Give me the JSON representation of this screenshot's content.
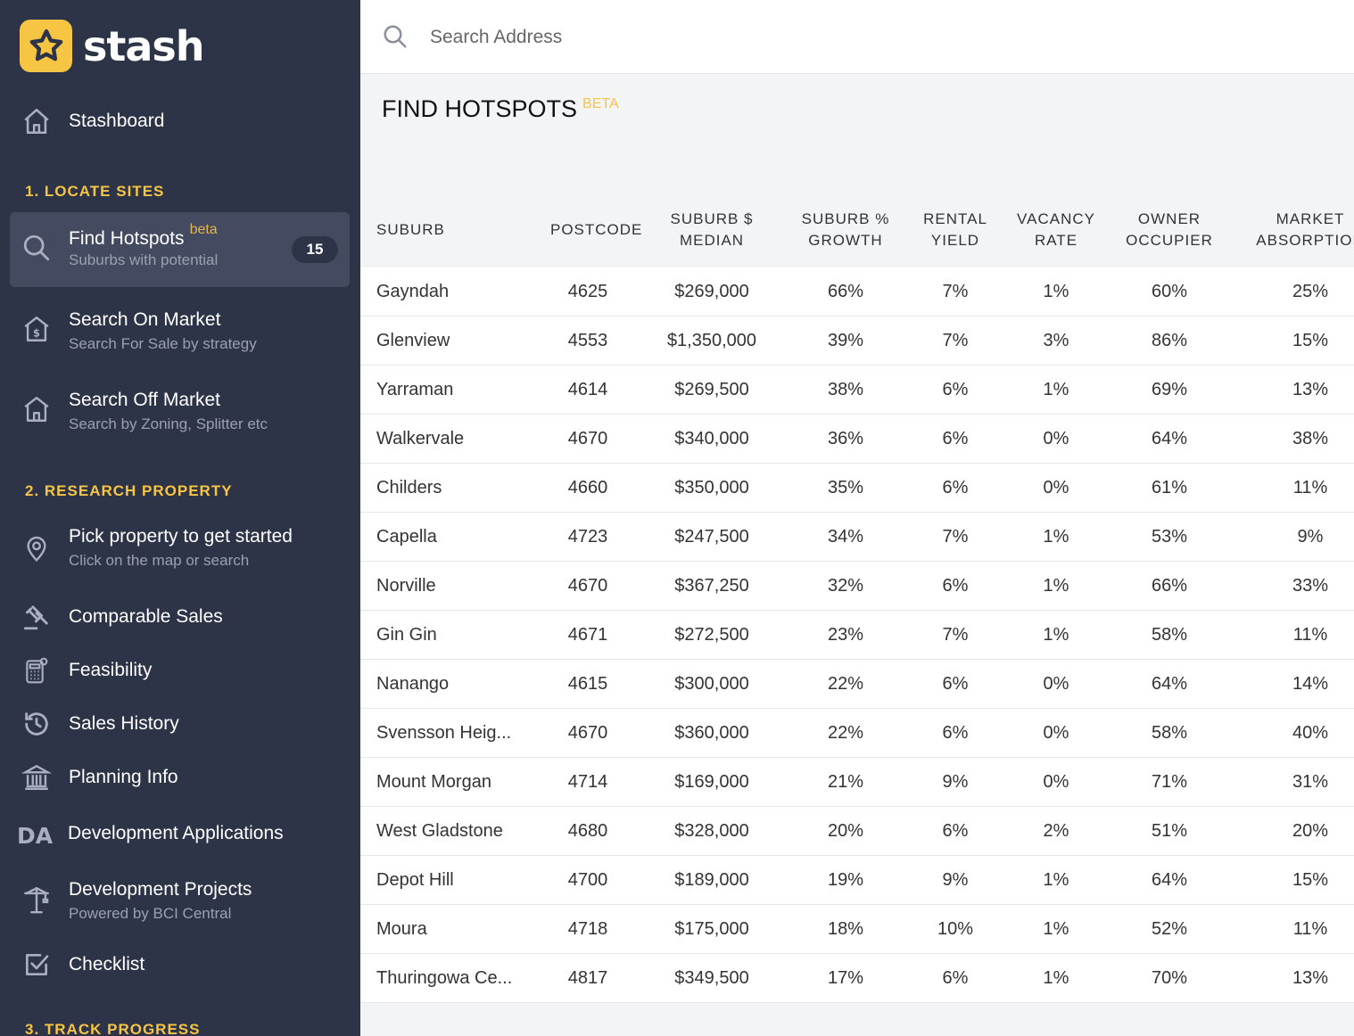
{
  "brand": {
    "name": "stash",
    "color": "#f7c544"
  },
  "sidebar": {
    "stashboard": {
      "label": "Stashboard",
      "icon": "home-icon"
    },
    "sections": [
      {
        "heading": "1. LOCATE SITES"
      },
      {
        "heading": "2. RESEARCH PROPERTY"
      },
      {
        "heading": "3. TRACK PROGRESS"
      }
    ],
    "locate": [
      {
        "title": "Find Hotspots",
        "tag": "beta",
        "sub": "Suburbs with potential",
        "badge": "15",
        "icon": "search-icon",
        "active": true
      },
      {
        "title": "Search On Market",
        "sub": "Search For Sale by strategy",
        "icon": "house-dollar-icon"
      },
      {
        "title": "Search Off Market",
        "sub": "Search by Zoning, Splitter etc",
        "icon": "home-icon"
      }
    ],
    "research": [
      {
        "title": "Pick property to get started",
        "sub": "Click on the map or search",
        "icon": "location-pin-icon"
      },
      {
        "title": "Comparable Sales",
        "icon": "gavel-icon"
      },
      {
        "title": "Feasibility",
        "icon": "calculator-icon"
      },
      {
        "title": "Sales History",
        "icon": "history-icon"
      },
      {
        "title": "Planning Info",
        "icon": "bank-icon"
      },
      {
        "title": "Development Applications",
        "icon": "da-icon",
        "icon_text": "DA"
      },
      {
        "title": "Development Projects",
        "sub": "Powered by BCI Central",
        "icon": "crane-icon"
      },
      {
        "title": "Checklist",
        "icon": "checkbox-icon"
      }
    ]
  },
  "search": {
    "placeholder": "Search Address"
  },
  "page": {
    "title": "FIND HOTSPOTS",
    "tag": "BETA"
  },
  "table": {
    "headers": {
      "suburb": "SUBURB",
      "postcode": "POSTCODE",
      "median_1": "SUBURB $",
      "median_2": "MEDIAN",
      "growth_1": "SUBURB %",
      "growth_2": "GROWTH",
      "yield_1": "RENTAL",
      "yield_2": "YIELD",
      "vacancy_1": "VACANCY",
      "vacancy_2": "RATE",
      "owner_1": "OWNER",
      "owner_2": "OCCUPIER",
      "absorption_1": "MARKET",
      "absorption_2": "ABSORPTION"
    },
    "rows": [
      {
        "suburb": "Gayndah",
        "postcode": "4625",
        "median": "$269,000",
        "growth": "66%",
        "yield": "7%",
        "vacancy": "1%",
        "owner": "60%",
        "absorption": "25%"
      },
      {
        "suburb": "Glenview",
        "postcode": "4553",
        "median": "$1,350,000",
        "growth": "39%",
        "yield": "7%",
        "vacancy": "3%",
        "owner": "86%",
        "absorption": "15%"
      },
      {
        "suburb": "Yarraman",
        "postcode": "4614",
        "median": "$269,500",
        "growth": "38%",
        "yield": "6%",
        "vacancy": "1%",
        "owner": "69%",
        "absorption": "13%"
      },
      {
        "suburb": "Walkervale",
        "postcode": "4670",
        "median": "$340,000",
        "growth": "36%",
        "yield": "6%",
        "vacancy": "0%",
        "owner": "64%",
        "absorption": "38%"
      },
      {
        "suburb": "Childers",
        "postcode": "4660",
        "median": "$350,000",
        "growth": "35%",
        "yield": "6%",
        "vacancy": "0%",
        "owner": "61%",
        "absorption": "11%"
      },
      {
        "suburb": "Capella",
        "postcode": "4723",
        "median": "$247,500",
        "growth": "34%",
        "yield": "7%",
        "vacancy": "1%",
        "owner": "53%",
        "absorption": "9%"
      },
      {
        "suburb": "Norville",
        "postcode": "4670",
        "median": "$367,250",
        "growth": "32%",
        "yield": "6%",
        "vacancy": "1%",
        "owner": "66%",
        "absorption": "33%"
      },
      {
        "suburb": "Gin Gin",
        "postcode": "4671",
        "median": "$272,500",
        "growth": "23%",
        "yield": "7%",
        "vacancy": "1%",
        "owner": "58%",
        "absorption": "11%"
      },
      {
        "suburb": "Nanango",
        "postcode": "4615",
        "median": "$300,000",
        "growth": "22%",
        "yield": "6%",
        "vacancy": "0%",
        "owner": "64%",
        "absorption": "14%"
      },
      {
        "suburb": "Svensson Heig...",
        "postcode": "4670",
        "median": "$360,000",
        "growth": "22%",
        "yield": "6%",
        "vacancy": "0%",
        "owner": "58%",
        "absorption": "40%"
      },
      {
        "suburb": "Mount Morgan",
        "postcode": "4714",
        "median": "$169,000",
        "growth": "21%",
        "yield": "9%",
        "vacancy": "0%",
        "owner": "71%",
        "absorption": "31%"
      },
      {
        "suburb": "West Gladstone",
        "postcode": "4680",
        "median": "$328,000",
        "growth": "20%",
        "yield": "6%",
        "vacancy": "2%",
        "owner": "51%",
        "absorption": "20%"
      },
      {
        "suburb": "Depot Hill",
        "postcode": "4700",
        "median": "$189,000",
        "growth": "19%",
        "yield": "9%",
        "vacancy": "1%",
        "owner": "64%",
        "absorption": "15%"
      },
      {
        "suburb": "Moura",
        "postcode": "4718",
        "median": "$175,000",
        "growth": "18%",
        "yield": "10%",
        "vacancy": "1%",
        "owner": "52%",
        "absorption": "11%"
      },
      {
        "suburb": "Thuringowa Ce...",
        "postcode": "4817",
        "median": "$349,500",
        "growth": "17%",
        "yield": "6%",
        "vacancy": "1%",
        "owner": "70%",
        "absorption": "13%"
      }
    ]
  }
}
